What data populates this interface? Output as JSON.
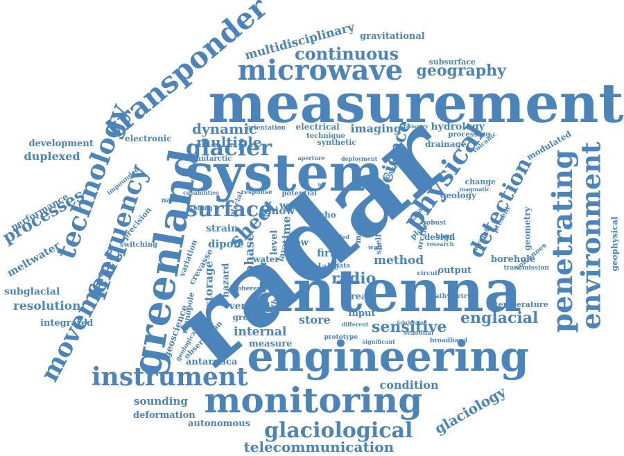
{
  "color": "#4a84bb",
  "words": [
    "radar",
    "measurement",
    "system",
    "greenland",
    "antenna",
    "engineering",
    "monitoring",
    "microwave",
    "transponder",
    "technology",
    "frequency",
    "movement",
    "penetrating",
    "environment",
    "physical",
    "glacier",
    "surface",
    "instrument",
    "sheet",
    "detection",
    "science",
    "continuous",
    "geography",
    "processes",
    "multidisciplinary",
    "englacial",
    "glaciological",
    "sensitive",
    "dynamic",
    "multiple",
    "telecommunication",
    "glaciology",
    "imaging",
    "duplexed",
    "development",
    "performance",
    "meltwater",
    "resolution",
    "subglacial",
    "integrated",
    "hydrology",
    "gravitational",
    "subsurface",
    "electrical",
    "electronic",
    "drainage",
    "modulated",
    "geophysical",
    "sounding",
    "deformation",
    "autonomous",
    "condition",
    "internal",
    "vertical",
    "ground",
    "measure",
    "radio",
    "method",
    "strain",
    "dipole",
    "phase",
    "antarctica",
    "monopole",
    "crevasse",
    "geoscience",
    "variation",
    "storage",
    "output",
    "borehole",
    "temperature",
    "store",
    "input",
    "firn",
    "lake",
    "design",
    "geology",
    "snow",
    "echo",
    "time",
    "level",
    "sensor",
    "orientation",
    "stationary",
    "technique",
    "synthetic",
    "antarctic",
    "aperture",
    "deployment",
    "crossed",
    "processing",
    "volcanic",
    "geometry",
    "volcanoes",
    "wireless",
    "present",
    "change",
    "magmatic",
    "bathymetry",
    "circuit",
    "band",
    "research",
    "robust",
    "plate",
    "arctic",
    "lava",
    "mass",
    "basal",
    "shelf",
    "stream",
    "fabrication",
    "broadband",
    "seasonal",
    "significant",
    "prototype",
    "observation",
    "geological",
    "coherent",
    "depth",
    "switching",
    "precision",
    "natural",
    "capabilities",
    "evolving",
    "response",
    "potential",
    "wave",
    "glacial",
    "impounded",
    "transmission",
    "folded",
    "flow",
    "ice",
    "data",
    "water",
    "wall",
    "hazard",
    "different",
    "polar"
  ]
}
